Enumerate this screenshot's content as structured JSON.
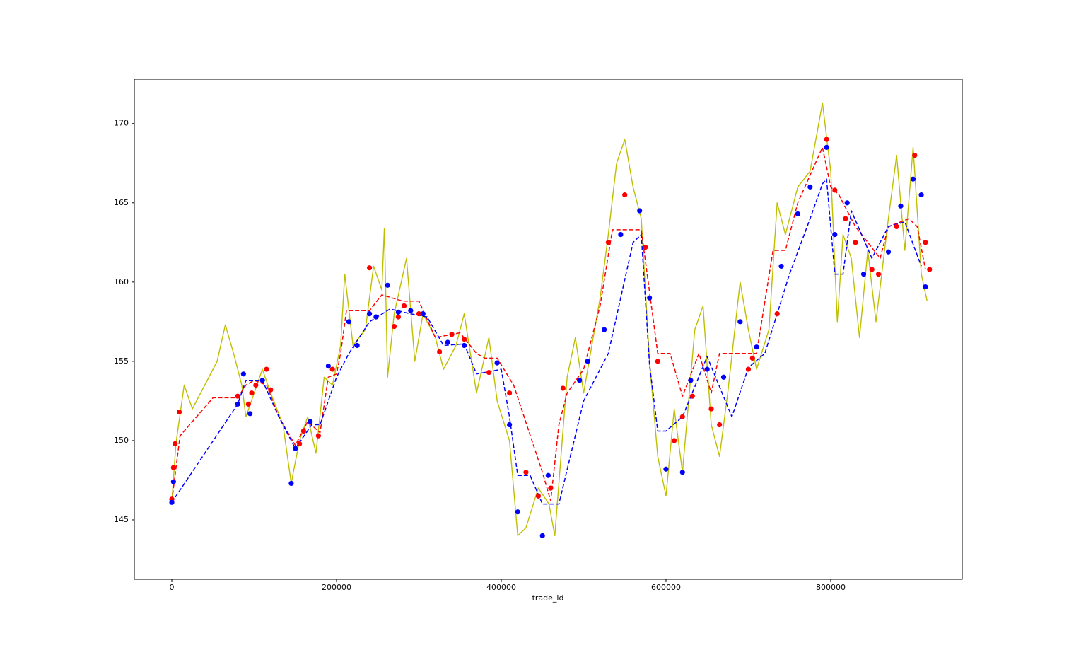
{
  "chart_data": {
    "type": "line",
    "x_label": "trade_id",
    "grid": false,
    "xlim": [
      -45500,
      959700
    ],
    "ylim": [
      141.25,
      172.8
    ],
    "xticks": [
      0,
      200000,
      400000,
      600000,
      800000
    ],
    "yticks": [
      145,
      150,
      155,
      160,
      165,
      170
    ],
    "series": [
      {
        "kind": "line",
        "linestyle": "solid",
        "color": "#bfbf00",
        "x": [
          0,
          5000,
          15000,
          25000,
          40000,
          55000,
          65000,
          75000,
          85000,
          90000,
          100000,
          110000,
          120000,
          135000,
          145000,
          155000,
          165000,
          175000,
          185000,
          195000,
          205000,
          210000,
          220000,
          235000,
          245000,
          255000,
          258000,
          262000,
          270000,
          285000,
          295000,
          305000,
          320000,
          330000,
          345000,
          355000,
          370000,
          385000,
          395000,
          410000,
          420000,
          430000,
          445000,
          458000,
          465000,
          480000,
          490000,
          500000,
          510000,
          520000,
          530000,
          540000,
          550000,
          560000,
          570000,
          580000,
          590000,
          600000,
          610000,
          620000,
          635000,
          645000,
          655000,
          665000,
          675000,
          690000,
          700000,
          710000,
          725000,
          735000,
          745000,
          760000,
          775000,
          790000,
          800000,
          808000,
          815000,
          825000,
          835000,
          845000,
          855000,
          870000,
          880000,
          890000,
          900000,
          910000,
          917000
        ],
        "values": [
          146.1,
          149.8,
          153.5,
          152,
          153.5,
          155,
          157.3,
          155.5,
          153.5,
          151.5,
          153,
          154.5,
          153,
          151,
          147.3,
          150,
          151.5,
          149.2,
          154,
          153.5,
          156,
          160.5,
          156,
          157,
          161,
          159.5,
          163.4,
          154,
          158,
          161.5,
          155,
          158,
          156.5,
          154.5,
          156,
          158,
          153,
          156.5,
          152.5,
          150,
          144,
          144.5,
          147,
          146,
          144,
          154,
          156.5,
          153,
          156,
          159,
          163,
          167.5,
          169,
          166,
          164,
          155,
          149,
          146.5,
          152,
          148,
          157,
          158.5,
          151,
          149,
          153,
          160,
          157,
          154.5,
          157,
          165,
          163,
          166,
          167,
          171.3,
          167,
          157.5,
          163,
          161.5,
          156.5,
          162,
          157.5,
          164,
          168,
          162,
          168.5,
          160.5,
          158.8
        ]
      },
      {
        "kind": "line",
        "linestyle": "dashed",
        "color": "#ff0000",
        "x": [
          0,
          10000,
          50000,
          80000,
          90000,
          100000,
          115000,
          130000,
          150000,
          165000,
          180000,
          190000,
          200000,
          205000,
          212000,
          240000,
          255000,
          280000,
          300000,
          320000,
          350000,
          370000,
          380000,
          395000,
          415000,
          450000,
          460000,
          470000,
          480000,
          500000,
          520000,
          535000,
          570000,
          590000,
          605000,
          620000,
          640000,
          655000,
          665000,
          690000,
          710000,
          730000,
          745000,
          760000,
          790000,
          800000,
          810000,
          830000,
          860000,
          870000,
          895000,
          905000,
          915000
        ],
        "values": [
          146.2,
          150.3,
          152.7,
          152.7,
          153.5,
          153.8,
          153.5,
          151.5,
          149.7,
          151.2,
          150.5,
          154,
          154.2,
          155.5,
          158.2,
          158.2,
          159.2,
          158.8,
          158.8,
          156.5,
          156.8,
          155.5,
          155.2,
          155.2,
          153.5,
          148,
          146.2,
          151,
          153,
          154.5,
          158.5,
          163.3,
          163.3,
          155.5,
          155.5,
          152.8,
          155.5,
          153,
          155.5,
          155.5,
          155.5,
          162,
          162,
          165,
          168.5,
          166,
          165.5,
          163.5,
          161.5,
          163.5,
          164,
          163.5,
          160.8
        ]
      },
      {
        "kind": "line",
        "linestyle": "dashed",
        "color": "#0000ff",
        "x": [
          0,
          80000,
          90000,
          110000,
          130000,
          150000,
          170000,
          180000,
          200000,
          215000,
          240000,
          265000,
          290000,
          310000,
          330000,
          355000,
          370000,
          400000,
          410000,
          420000,
          435000,
          450000,
          470000,
          500000,
          530000,
          560000,
          570000,
          580000,
          590000,
          600000,
          620000,
          650000,
          680000,
          700000,
          720000,
          750000,
          775000,
          790000,
          795000,
          805000,
          815000,
          825000,
          850000,
          870000,
          890000,
          910000
        ],
        "values": [
          146.1,
          152.3,
          153.8,
          153.8,
          151.5,
          149.5,
          151,
          151,
          154,
          155.5,
          157.5,
          158.3,
          158,
          157.8,
          156,
          156.1,
          154.2,
          154.5,
          151.5,
          147.8,
          147.8,
          146,
          146,
          152.5,
          155.5,
          162.5,
          163,
          154.8,
          150.6,
          150.6,
          151.5,
          155.3,
          151.5,
          154.6,
          155.5,
          160.5,
          164,
          166.2,
          166.5,
          160.5,
          160.5,
          164.5,
          161.5,
          163.5,
          163.8,
          161
        ]
      },
      {
        "kind": "scatter",
        "color": "#ff0000",
        "x": [
          0,
          2000,
          4000,
          9000,
          80000,
          93000,
          97000,
          102000,
          115000,
          120000,
          155000,
          160000,
          178000,
          195000,
          240000,
          270000,
          275000,
          282000,
          300000,
          325000,
          340000,
          355000,
          385000,
          410000,
          430000,
          445000,
          460000,
          475000,
          530000,
          550000,
          575000,
          590000,
          610000,
          620000,
          632000,
          655000,
          665000,
          700000,
          705000,
          735000,
          795000,
          805000,
          818000,
          830000,
          850000,
          858000,
          880000,
          902000,
          915000,
          920000
        ],
        "values": [
          146.3,
          148.3,
          149.8,
          151.8,
          152.8,
          152.3,
          153,
          153.5,
          154.5,
          153.2,
          149.8,
          150.6,
          150.3,
          154.5,
          160.9,
          157.2,
          157.8,
          158.5,
          158,
          155.6,
          156.7,
          156.4,
          154.3,
          153,
          148,
          146.5,
          147,
          153.3,
          162.5,
          165.5,
          162.2,
          155,
          150,
          151.5,
          152.8,
          152,
          151,
          154.5,
          155.2,
          158,
          169,
          165.8,
          164,
          162.5,
          160.8,
          160.5,
          163.5,
          168,
          162.5,
          160.8
        ]
      },
      {
        "kind": "scatter",
        "color": "#0000ff",
        "x": [
          0,
          2000,
          80000,
          87000,
          95000,
          110000,
          145000,
          150000,
          168000,
          190000,
          215000,
          225000,
          240000,
          248000,
          262000,
          275000,
          290000,
          305000,
          335000,
          355000,
          395000,
          410000,
          420000,
          450000,
          457000,
          495000,
          505000,
          525000,
          545000,
          568000,
          580000,
          600000,
          620000,
          630000,
          650000,
          670000,
          690000,
          710000,
          740000,
          760000,
          775000,
          795000,
          805000,
          820000,
          840000,
          870000,
          885000,
          900000,
          910000,
          915000
        ],
        "values": [
          146.1,
          147.4,
          152.3,
          154.2,
          151.7,
          153.8,
          147.3,
          149.5,
          151.2,
          154.7,
          157.5,
          156,
          158,
          157.8,
          159.8,
          158.1,
          158.2,
          158,
          156.2,
          156,
          154.9,
          151,
          145.5,
          144,
          147.8,
          153.8,
          155,
          157,
          163,
          164.5,
          159,
          148.2,
          148,
          153.8,
          154.5,
          154,
          157.5,
          155.9,
          161,
          164.3,
          166,
          168.5,
          163,
          165,
          160.5,
          161.9,
          164.8,
          166.5,
          165.5,
          159.7
        ]
      }
    ]
  }
}
